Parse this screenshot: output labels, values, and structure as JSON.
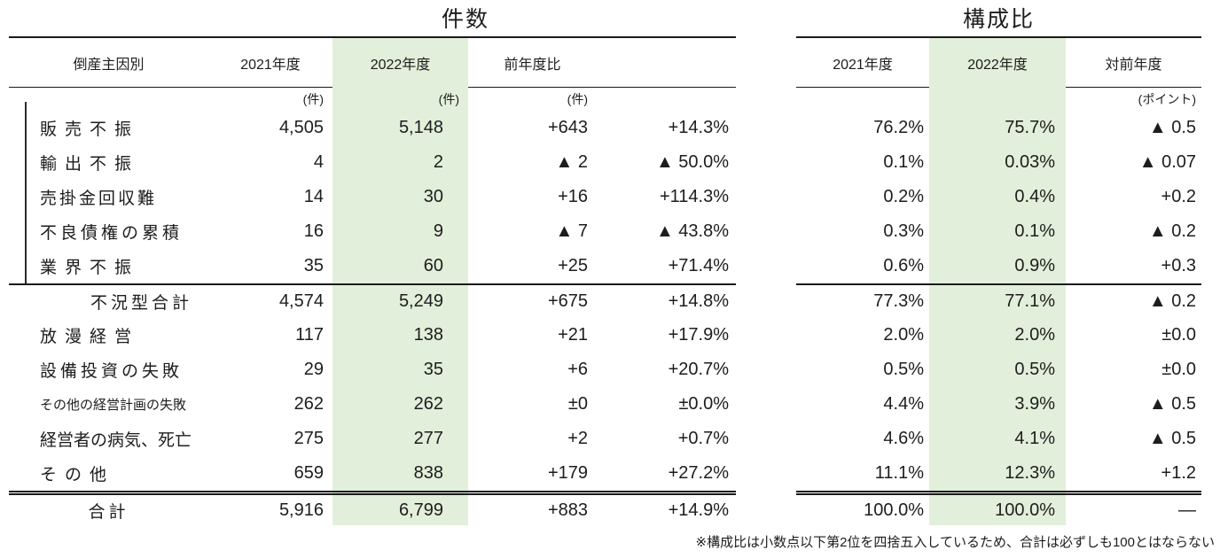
{
  "count": {
    "title": "件数",
    "col_cause": "倒産主因別",
    "col_2021": "2021年度",
    "col_2022": "2022年度",
    "col_yoy": "前年度比",
    "unit_2021": "(件)",
    "unit_2022": "(件)",
    "unit_yoy": "(件)"
  },
  "share": {
    "title": "構成比",
    "col_2021": "2021年度",
    "col_2022": "2022年度",
    "col_vs": "対前年度",
    "unit_vs": "(ポイント)"
  },
  "rows": [
    {
      "label": "販売不振",
      "cnt_2021": "4,505",
      "cnt_2022": "5,148",
      "diff": "+643",
      "pct": "+14.3%",
      "share_2021": "76.2%",
      "share_2022": "75.7%",
      "pt": "▲ 0.5"
    },
    {
      "label": "輸出不振",
      "cnt_2021": "4",
      "cnt_2022": "2",
      "diff": "▲ 2",
      "pct": "▲ 50.0%",
      "share_2021": "0.1%",
      "share_2022": "0.03%",
      "pt": "▲ 0.07"
    },
    {
      "label": "売掛金回収難",
      "cnt_2021": "14",
      "cnt_2022": "30",
      "diff": "+16",
      "pct": "+114.3%",
      "share_2021": "0.2%",
      "share_2022": "0.4%",
      "pt": "+0.2"
    },
    {
      "label": "不良債権の累積",
      "cnt_2021": "16",
      "cnt_2022": "9",
      "diff": "▲ 7",
      "pct": "▲ 43.8%",
      "share_2021": "0.3%",
      "share_2022": "0.1%",
      "pt": "▲ 0.2"
    },
    {
      "label": "業界不振",
      "cnt_2021": "35",
      "cnt_2022": "60",
      "diff": "+25",
      "pct": "+71.4%",
      "share_2021": "0.6%",
      "share_2022": "0.9%",
      "pt": "+0.3"
    },
    {
      "label": "不況型合計",
      "cnt_2021": "4,574",
      "cnt_2022": "5,249",
      "diff": "+675",
      "pct": "+14.8%",
      "share_2021": "77.3%",
      "share_2022": "77.1%",
      "pt": "▲ 0.2"
    },
    {
      "label": "放漫経営",
      "cnt_2021": "117",
      "cnt_2022": "138",
      "diff": "+21",
      "pct": "+17.9%",
      "share_2021": "2.0%",
      "share_2022": "2.0%",
      "pt": "±0.0"
    },
    {
      "label": "設備投資の失敗",
      "cnt_2021": "29",
      "cnt_2022": "35",
      "diff": "+6",
      "pct": "+20.7%",
      "share_2021": "0.5%",
      "share_2022": "0.5%",
      "pt": "±0.0"
    },
    {
      "label": "その他の経営計画の失敗",
      "cnt_2021": "262",
      "cnt_2022": "262",
      "diff": "±0",
      "pct": "±0.0%",
      "share_2021": "4.4%",
      "share_2022": "3.9%",
      "pt": "▲ 0.5"
    },
    {
      "label": "経営者の病気、死亡",
      "cnt_2021": "275",
      "cnt_2022": "277",
      "diff": "+2",
      "pct": "+0.7%",
      "share_2021": "4.6%",
      "share_2022": "4.1%",
      "pt": "▲ 0.5"
    },
    {
      "label": "その他",
      "cnt_2021": "659",
      "cnt_2022": "838",
      "diff": "+179",
      "pct": "+27.2%",
      "share_2021": "11.1%",
      "share_2022": "12.3%",
      "pt": "+1.2"
    }
  ],
  "total": {
    "label": "合計",
    "cnt_2021": "5,916",
    "cnt_2022": "6,799",
    "diff": "+883",
    "pct": "+14.9%",
    "share_2021": "100.0%",
    "share_2022": "100.0%",
    "pt": "—"
  },
  "footnote": "※構成比は小数点以下第2位を四捨五入しているため、合計は必ずしも100とはならない",
  "colors": {
    "highlight": "#e2efda"
  }
}
